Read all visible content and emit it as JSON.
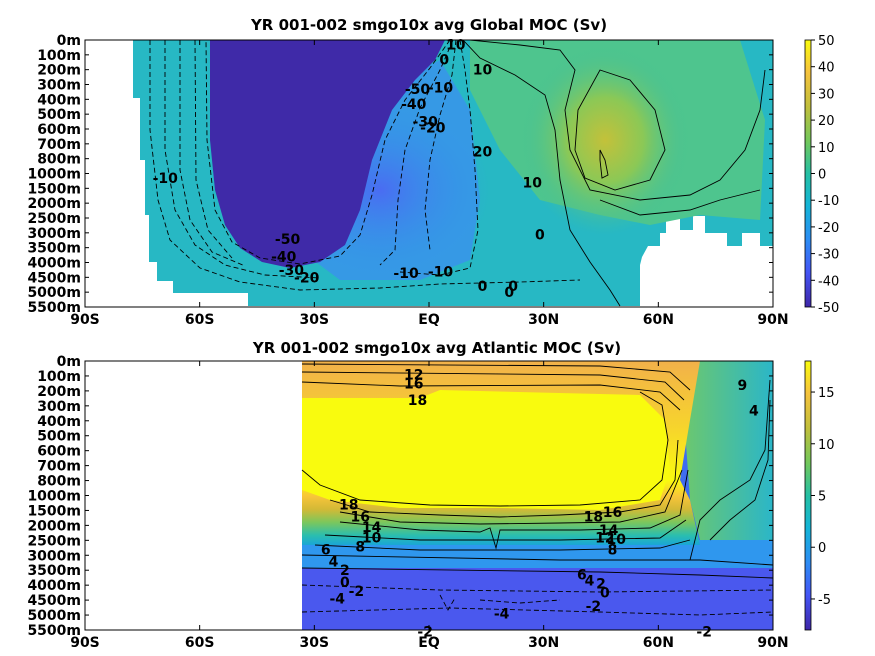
{
  "chart_data": [
    {
      "type": "heatmap",
      "title": "YR 001-002 smgo10x avg  Global MOC (Sv)",
      "y_tick_labels": [
        "0m",
        "100m",
        "200m",
        "300m",
        "400m",
        "500m",
        "600m",
        "700m",
        "800m",
        "1000m",
        "1500m",
        "2000m",
        "2500m",
        "3000m",
        "3500m",
        "4000m",
        "4500m",
        "5000m",
        "5500m"
      ],
      "x_tick_labels": [
        "90S",
        "60S",
        "30S",
        "EQ",
        "30N",
        "60N",
        "90N"
      ],
      "x_ticks": [
        -90,
        -60,
        -30,
        0,
        30,
        60,
        90
      ],
      "xlim": [
        -90,
        90
      ],
      "colorbar": {
        "ticks": [
          50,
          40,
          30,
          20,
          10,
          0,
          -10,
          -20,
          -30,
          -40,
          -50
        ],
        "range": [
          -50,
          50
        ]
      },
      "contour_labels": [
        {
          "text": "10",
          "x": 7,
          "y": 0.3
        },
        {
          "text": "0",
          "x": 4,
          "y": 1.3
        },
        {
          "text": "-10",
          "x": 3,
          "y": 3.2
        },
        {
          "text": "-50",
          "x": -3,
          "y": 3.3
        },
        {
          "text": "-40",
          "x": -4,
          "y": 4.3
        },
        {
          "text": "-30",
          "x": -1,
          "y": 5.5
        },
        {
          "text": "-20",
          "x": 1,
          "y": 5.9
        },
        {
          "text": "10",
          "x": 14,
          "y": 2.0
        },
        {
          "text": "20",
          "x": 14,
          "y": 7.5
        },
        {
          "text": "10",
          "x": 27,
          "y": 9.6
        },
        {
          "text": "0",
          "x": 29,
          "y": 13.1
        },
        {
          "text": "-10",
          "x": -69,
          "y": 9.3
        },
        {
          "text": "-50",
          "x": -37,
          "y": 13.4
        },
        {
          "text": "-40",
          "x": -38,
          "y": 14.6
        },
        {
          "text": "-30",
          "x": -36,
          "y": 15.5
        },
        {
          "text": "-20",
          "x": -32,
          "y": 16.0
        },
        {
          "text": "-10",
          "x": -6,
          "y": 15.7
        },
        {
          "text": "-10",
          "x": 3,
          "y": 15.6
        },
        {
          "text": "0",
          "x": 14,
          "y": 16.6
        },
        {
          "text": "0",
          "x": 21,
          "y": 17.0
        },
        {
          "text": "0",
          "x": 22,
          "y": 16.6
        }
      ]
    },
    {
      "type": "heatmap",
      "title": "YR 001-002 smgo10x avg  Atlantic MOC (Sv)",
      "y_tick_labels": [
        "0m",
        "100m",
        "200m",
        "300m",
        "400m",
        "500m",
        "600m",
        "700m",
        "800m",
        "1000m",
        "1500m",
        "2000m",
        "2500m",
        "3000m",
        "3500m",
        "4000m",
        "4500m",
        "5000m",
        "5500m"
      ],
      "x_tick_labels": [
        "90S",
        "60S",
        "30S",
        "EQ",
        "30N",
        "60N",
        "90N"
      ],
      "x_ticks": [
        -90,
        -60,
        -30,
        0,
        30,
        60,
        90
      ],
      "xlim": [
        -90,
        90
      ],
      "colorbar": {
        "ticks": [
          15,
          10,
          5,
          0,
          -5
        ],
        "range": [
          -8,
          18
        ]
      },
      "contour_labels": [
        {
          "text": "12",
          "x": -4,
          "y": 0.9
        },
        {
          "text": "16",
          "x": -4,
          "y": 1.5
        },
        {
          "text": "18",
          "x": -3,
          "y": 2.6
        },
        {
          "text": "9",
          "x": 82,
          "y": 1.6
        },
        {
          "text": "4",
          "x": 85,
          "y": 3.3
        },
        {
          "text": "18",
          "x": -21,
          "y": 9.6
        },
        {
          "text": "16",
          "x": -18,
          "y": 10.4
        },
        {
          "text": "14",
          "x": -15,
          "y": 11.1
        },
        {
          "text": "10",
          "x": -15,
          "y": 11.8
        },
        {
          "text": "8",
          "x": -18,
          "y": 12.4
        },
        {
          "text": "6",
          "x": -27,
          "y": 12.6
        },
        {
          "text": "4",
          "x": -25,
          "y": 13.4
        },
        {
          "text": "2",
          "x": -22,
          "y": 14.0
        },
        {
          "text": "0",
          "x": -22,
          "y": 14.8
        },
        {
          "text": "-2",
          "x": -19,
          "y": 15.4
        },
        {
          "text": "-4",
          "x": -24,
          "y": 15.9
        },
        {
          "text": "18",
          "x": 43,
          "y": 10.4
        },
        {
          "text": "16",
          "x": 48,
          "y": 10.1
        },
        {
          "text": "14",
          "x": 47,
          "y": 11.3
        },
        {
          "text": "12",
          "x": 46,
          "y": 11.8
        },
        {
          "text": "10",
          "x": 49,
          "y": 11.9
        },
        {
          "text": "8",
          "x": 48,
          "y": 12.6
        },
        {
          "text": "6",
          "x": 40,
          "y": 14.3
        },
        {
          "text": "4",
          "x": 42,
          "y": 14.7
        },
        {
          "text": "2",
          "x": 45,
          "y": 14.9
        },
        {
          "text": "0",
          "x": 46,
          "y": 15.5
        },
        {
          "text": "-2",
          "x": 43,
          "y": 16.4
        },
        {
          "text": "-4",
          "x": 19,
          "y": 16.9
        },
        {
          "text": "-2",
          "x": -1,
          "y": 18.1
        },
        {
          "text": "-2",
          "x": 72,
          "y": 18.1
        }
      ]
    }
  ]
}
